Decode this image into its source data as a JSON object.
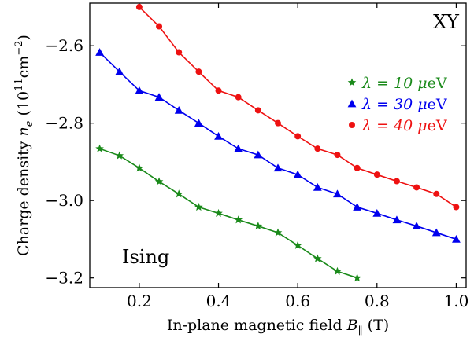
{
  "chart_data": {
    "type": "line",
    "xlabel_text": "In-plane magnetic field ",
    "xlabel_symbol": "B",
    "xlabel_sub": "∥",
    "xlabel_unit": " (T)",
    "ylabel_text": "Charge density ",
    "ylabel_symbol": "n",
    "ylabel_sub": "e",
    "ylabel_unit_open": " (10",
    "ylabel_unit_exp": "11",
    "ylabel_unit_mid": "cm",
    "ylabel_unit_exp2": "−2",
    "ylabel_unit_close": ")",
    "xlim": [
      0.075,
      1.025
    ],
    "ylim": [
      -3.225,
      -2.49
    ],
    "xticks": [
      0.2,
      0.4,
      0.6,
      0.8,
      1.0
    ],
    "xtick_labels": [
      "0.2",
      "0.4",
      "0.6",
      "0.8",
      "1.0"
    ],
    "yticks": [
      -2.6,
      -2.8,
      -3.0,
      -3.2
    ],
    "ytick_labels": [
      "−2.6",
      "−2.8",
      "−3.0",
      "−3.2"
    ],
    "grid": false,
    "legend_position": "center-right",
    "annotations": [
      {
        "text": "XY",
        "position": "top-right"
      },
      {
        "text": "Ising",
        "position": "bottom-left"
      }
    ],
    "series": [
      {
        "name": "λ = 10 μeV",
        "legend_prefix": "λ = 10 ",
        "legend_unit": "μ",
        "legend_suffix": "eV",
        "color": "#1a8a1a",
        "marker": "star",
        "x": [
          0.1,
          0.15,
          0.2,
          0.25,
          0.3,
          0.35,
          0.4,
          0.45,
          0.5,
          0.55,
          0.6,
          0.65,
          0.7,
          0.75
        ],
        "y": [
          -2.866,
          -2.884,
          -2.916,
          -2.951,
          -2.983,
          -3.017,
          -3.033,
          -3.05,
          -3.066,
          -3.083,
          -3.116,
          -3.15,
          -3.183,
          -3.2
        ]
      },
      {
        "name": "λ = 30 μeV",
        "legend_prefix": "λ = 30 ",
        "legend_unit": "μ",
        "legend_suffix": "eV",
        "color": "#0000ee",
        "marker": "triangle",
        "x": [
          0.1,
          0.15,
          0.2,
          0.25,
          0.3,
          0.35,
          0.4,
          0.45,
          0.5,
          0.55,
          0.6,
          0.65,
          0.7,
          0.75,
          0.8,
          0.85,
          0.9,
          0.95,
          1.0
        ],
        "y": [
          -2.617,
          -2.667,
          -2.716,
          -2.733,
          -2.767,
          -2.8,
          -2.834,
          -2.866,
          -2.882,
          -2.916,
          -2.933,
          -2.966,
          -2.983,
          -3.017,
          -3.033,
          -3.05,
          -3.066,
          -3.083,
          -3.1
        ]
      },
      {
        "name": "λ = 40 μeV",
        "legend_prefix": "λ = 40 ",
        "legend_unit": "μ",
        "legend_suffix": "eV",
        "color": "#ee1111",
        "marker": "circle",
        "x": [
          0.2,
          0.25,
          0.3,
          0.35,
          0.4,
          0.45,
          0.5,
          0.55,
          0.6,
          0.65,
          0.7,
          0.75,
          0.8,
          0.85,
          0.9,
          0.95,
          1.0
        ],
        "y": [
          -2.5,
          -2.55,
          -2.617,
          -2.667,
          -2.716,
          -2.733,
          -2.767,
          -2.8,
          -2.834,
          -2.866,
          -2.882,
          -2.916,
          -2.933,
          -2.95,
          -2.966,
          -2.983,
          -3.017
        ]
      }
    ]
  }
}
